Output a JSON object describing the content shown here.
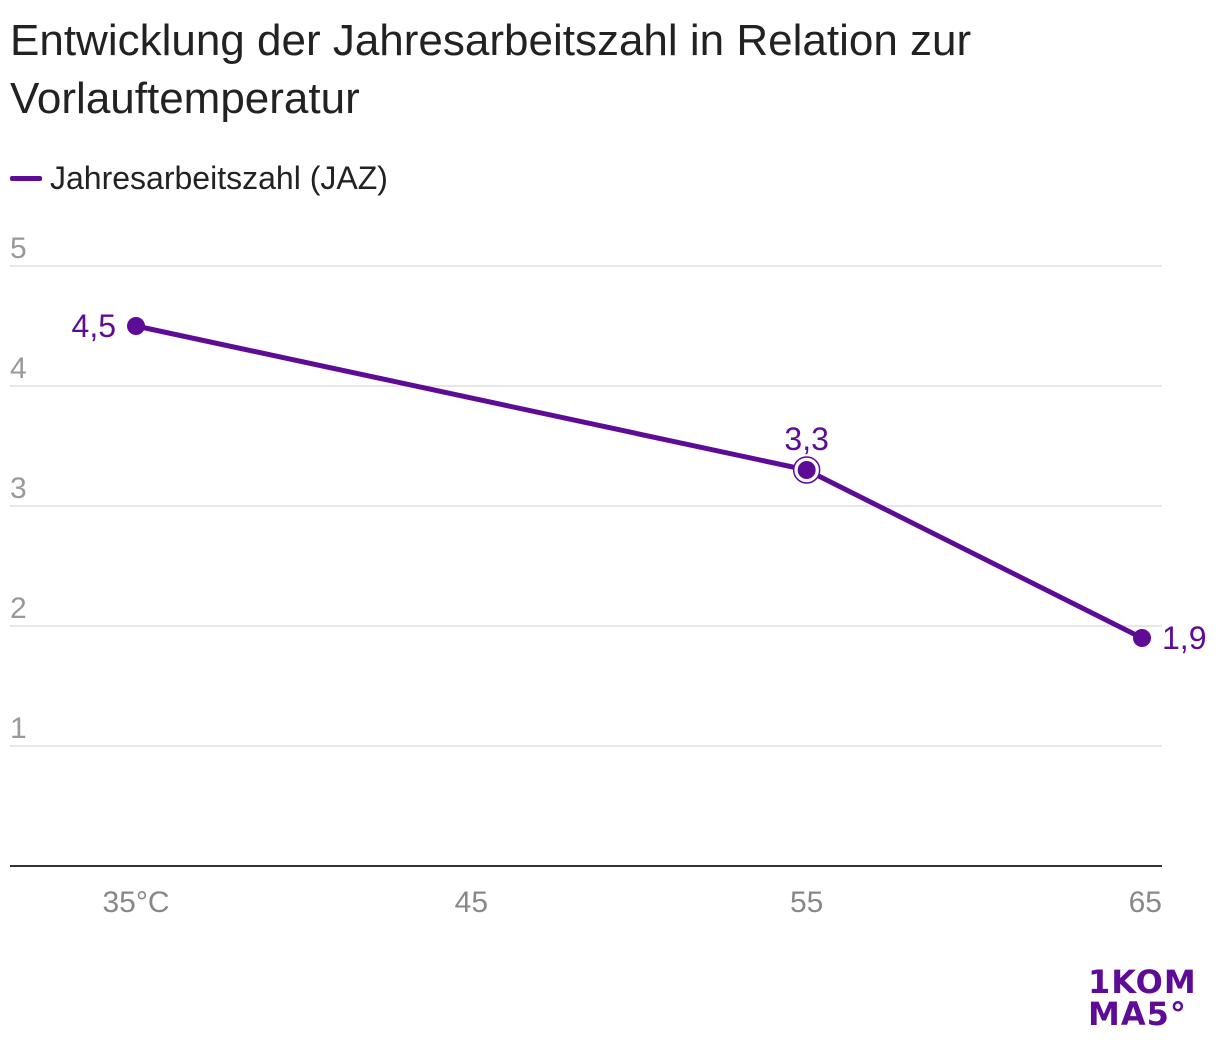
{
  "title": "Entwicklung der Jahresarbeitszahl in Relation zur Vorlauftemperatur",
  "legend": {
    "label": "Jahresarbeitszahl (JAZ)"
  },
  "colors": {
    "series": "#5e0b96",
    "grid": "#dddddd",
    "axis": "#333333",
    "tick": "#999999"
  },
  "chart_data": {
    "type": "line",
    "x": [
      35,
      55,
      65
    ],
    "xticks": [
      35,
      45,
      55,
      65
    ],
    "xtick_labels": [
      "35°C",
      "45",
      "55",
      "65"
    ],
    "yticks": [
      1,
      2,
      3,
      4,
      5
    ],
    "ytick_labels": [
      "1",
      "2",
      "3",
      "4",
      "5"
    ],
    "xlim": [
      35,
      65
    ],
    "ylim": [
      0,
      5
    ],
    "grid": true,
    "legend_position": "top-left",
    "series": [
      {
        "name": "Jahresarbeitszahl (JAZ)",
        "values": [
          4.5,
          3.3,
          1.9
        ],
        "labels": [
          "4,5",
          "3,3",
          "1,9"
        ]
      }
    ]
  },
  "logo": {
    "line1": "1KOM",
    "line2": "MA5°"
  }
}
